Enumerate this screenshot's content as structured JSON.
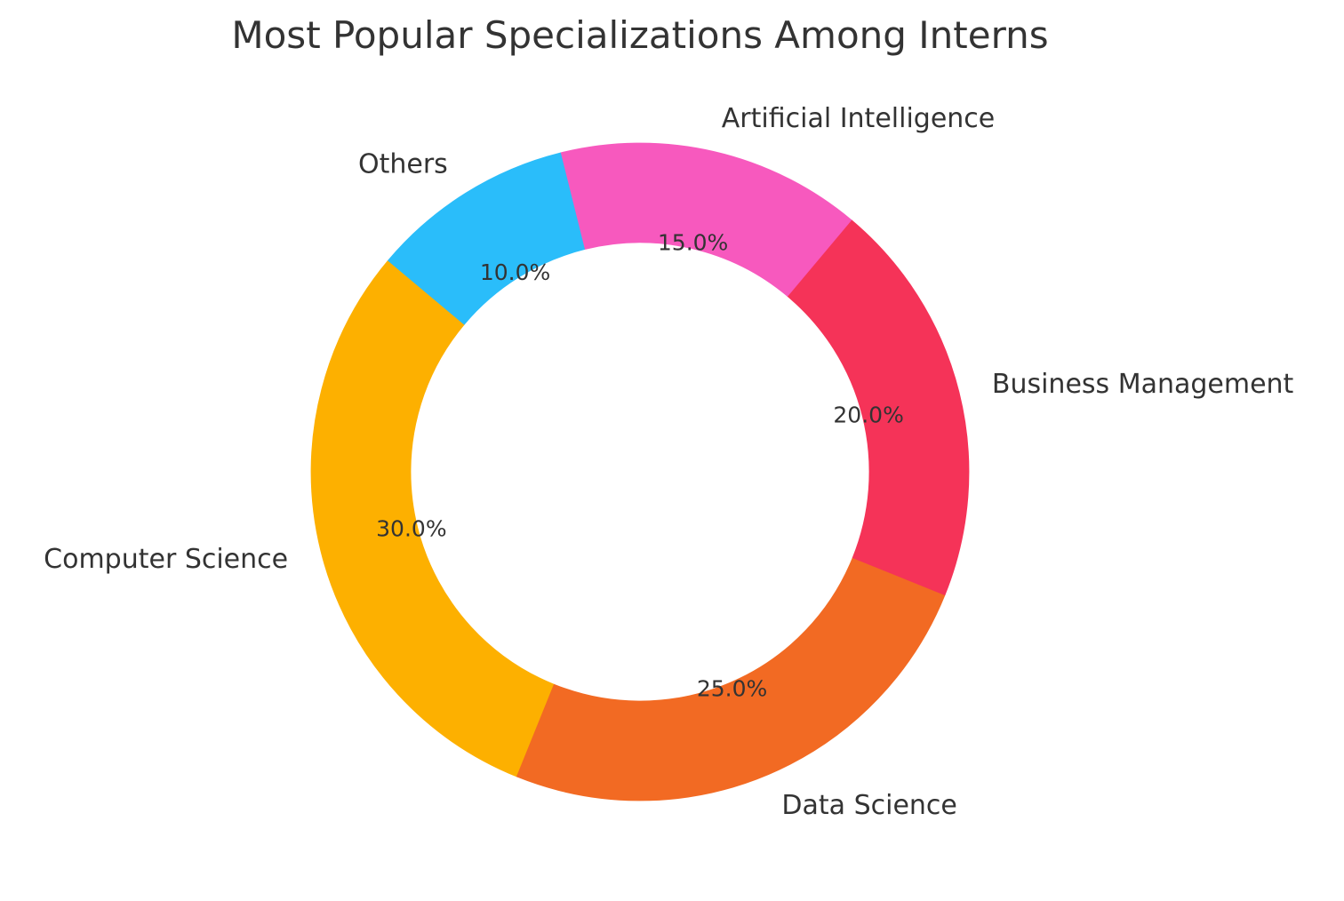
{
  "chart_data": {
    "type": "pie",
    "title": "Most Popular Specializations Among Interns",
    "categories": [
      "Computer Science",
      "Data Science",
      "Business Management",
      "Artificial Intelligence",
      "Others"
    ],
    "values": [
      30,
      25,
      20,
      15,
      10
    ],
    "percent_labels": [
      "30.0%",
      "25.0%",
      "20.0%",
      "15.0%",
      "10.0%"
    ],
    "colors": [
      "#FDB000",
      "#F26A23",
      "#F53358",
      "#F759BE",
      "#2ABDFA"
    ],
    "donut": true,
    "start_angle_deg": 140,
    "direction": "counterclockwise",
    "legend": "none"
  }
}
